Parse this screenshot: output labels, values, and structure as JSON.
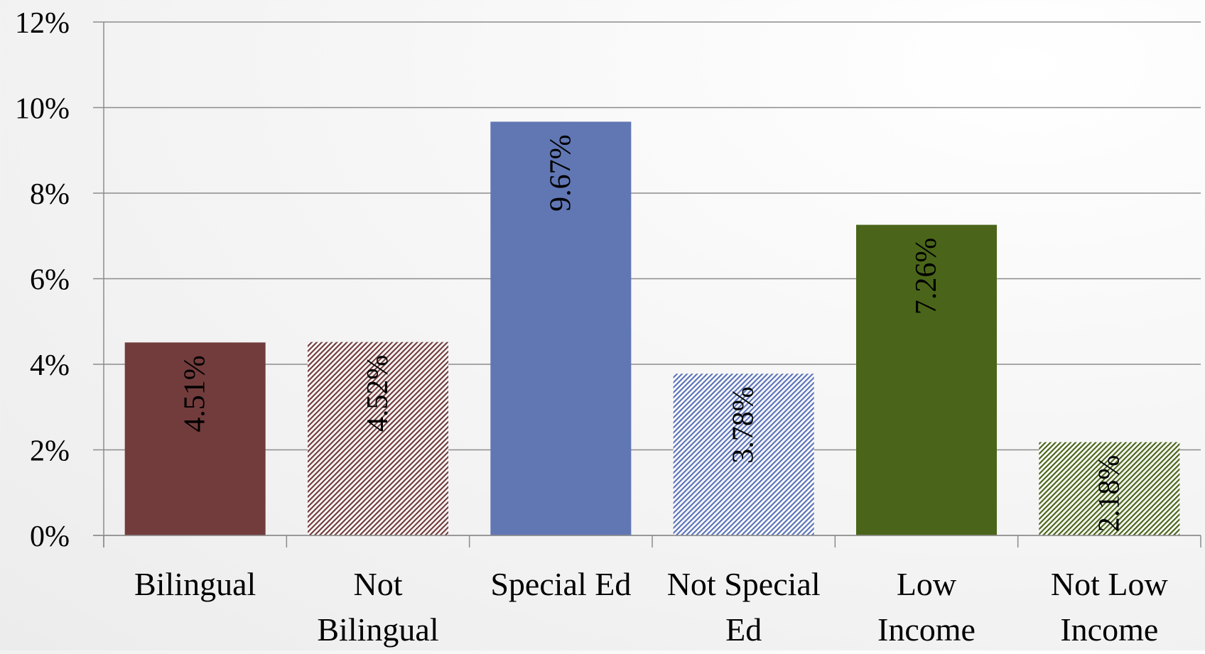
{
  "chart_data": {
    "type": "bar",
    "categories": [
      [
        "Bilingual"
      ],
      [
        "Not",
        "Bilingual"
      ],
      [
        "Special Ed"
      ],
      [
        "Not Special",
        "Ed"
      ],
      [
        "Low",
        "Income"
      ],
      [
        "Not Low",
        "Income"
      ]
    ],
    "values": [
      4.51,
      4.52,
      9.67,
      3.78,
      7.26,
      2.18
    ],
    "data_labels": [
      "4.51%",
      "4.52%",
      "9.67%",
      "3.78%",
      "7.26%",
      "2.18%"
    ],
    "y_ticks": [
      "0%",
      "2%",
      "4%",
      "6%",
      "8%",
      "10%",
      "12%"
    ],
    "ylim": [
      0,
      12
    ],
    "grid": true,
    "legend": "none",
    "colors": [
      "#723c3c",
      "#723c3c",
      "#6177b4",
      "#5b73b8",
      "#4a6519",
      "#4a6519"
    ],
    "fill_styles": [
      "solid",
      "hatched",
      "solid",
      "hatched",
      "solid",
      "hatched"
    ]
  }
}
